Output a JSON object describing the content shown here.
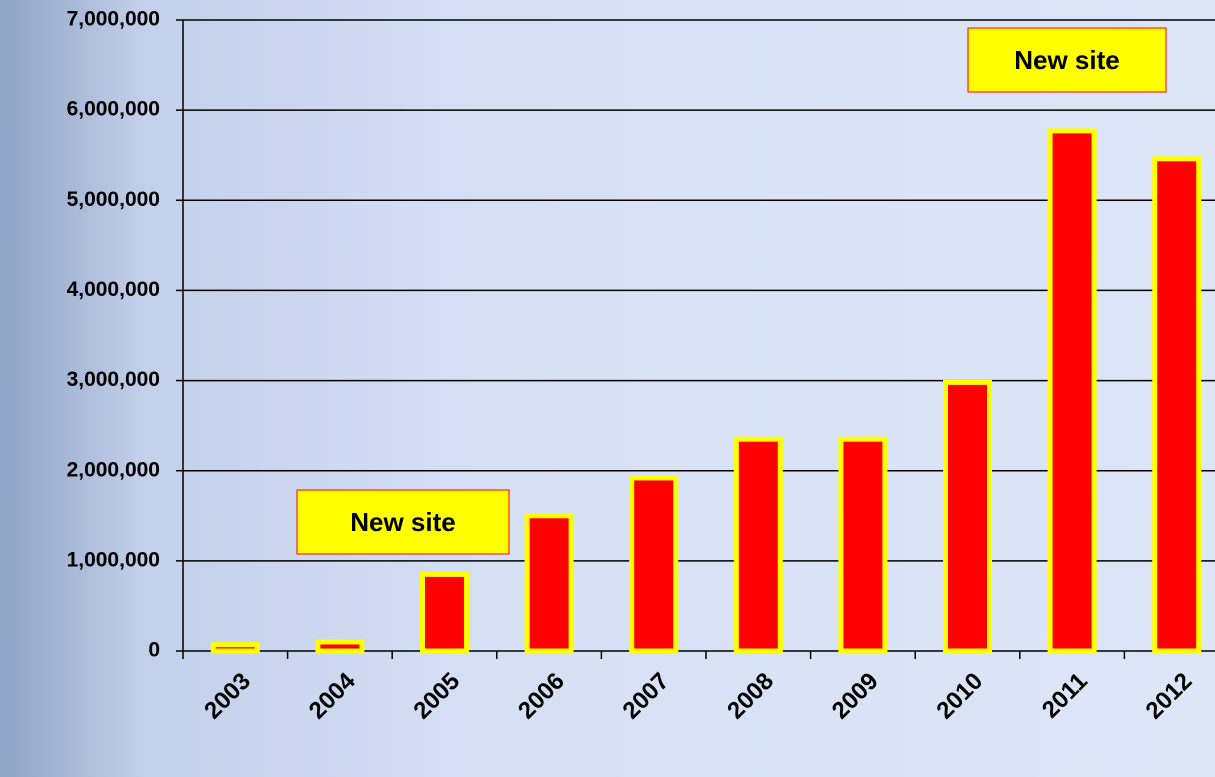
{
  "chart_data": {
    "type": "bar",
    "categories": [
      "2003",
      "2004",
      "2005",
      "2006",
      "2007",
      "2008",
      "2009",
      "2010",
      "2011",
      "2012"
    ],
    "values": [
      70000,
      100000,
      850000,
      1500000,
      1920000,
      2350000,
      2350000,
      2980000,
      5770000,
      5460000
    ],
    "color": "#ff0000",
    "edge_color": "#ffff00",
    "ylim": [
      0,
      7000000
    ],
    "yticks": [
      0,
      {
        "value": 1000000,
        "label": "1,000,000"
      },
      {
        "value": 2000000,
        "label": "2,000,000"
      },
      {
        "value": 3000000,
        "label": "3,000,000"
      },
      {
        "value": 4000000,
        "label": "4,000,000"
      },
      {
        "value": 5000000,
        "label": "5,000,000"
      },
      {
        "value": 6000000,
        "label": "6,000,000"
      },
      {
        "value": 7000000,
        "label": "7,000,000"
      }
    ],
    "grid": true,
    "annotations": [
      {
        "text": "New site"
      },
      {
        "text": "New site"
      }
    ]
  }
}
